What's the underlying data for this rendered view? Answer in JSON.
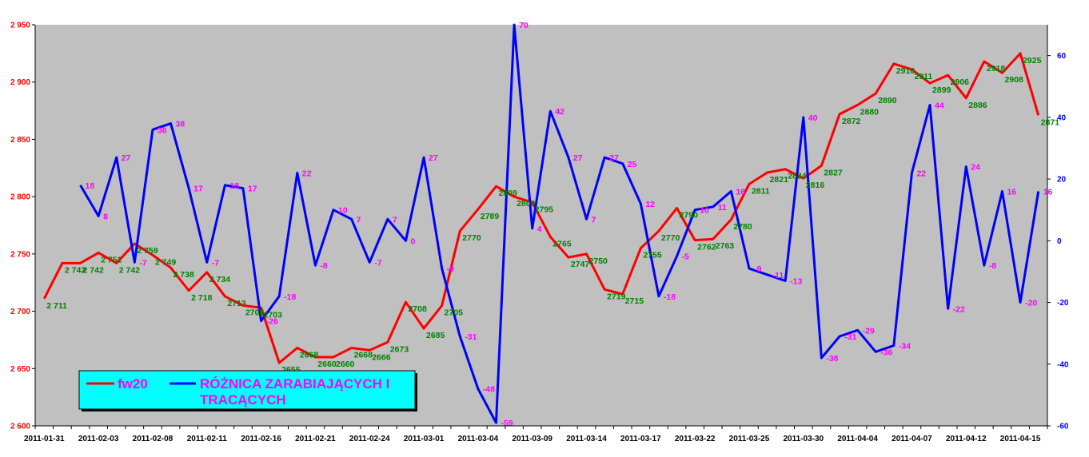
{
  "chart_data": {
    "type": "line",
    "title": "",
    "colors": {
      "plot_bg": "#c0c0c0",
      "legend_bg": "#00ffff",
      "fw20": "#ff0000",
      "diff": "#0000ff",
      "fw20_labels": "#008000",
      "diff_labels": "#ff00ff"
    },
    "x": [
      "2011-01-31",
      "2011-02-01",
      "2011-02-02",
      "2011-02-03",
      "2011-02-04",
      "2011-02-07",
      "2011-02-08",
      "2011-02-09",
      "2011-02-10",
      "2011-02-11",
      "2011-02-14",
      "2011-02-15",
      "2011-02-16",
      "2011-02-17",
      "2011-02-18",
      "2011-02-21",
      "2011-02-22",
      "2011-02-23",
      "2011-02-24",
      "2011-02-25",
      "2011-02-28",
      "2011-03-01",
      "2011-03-02",
      "2011-03-03",
      "2011-03-04",
      "2011-03-07",
      "2011-03-08",
      "2011-03-09",
      "2011-03-10",
      "2011-03-11",
      "2011-03-14",
      "2011-03-15",
      "2011-03-16",
      "2011-03-17",
      "2011-03-18",
      "2011-03-21",
      "2011-03-22",
      "2011-03-23",
      "2011-03-24",
      "2011-03-25",
      "2011-03-28",
      "2011-03-29",
      "2011-03-30",
      "2011-03-31",
      "2011-04-01",
      "2011-04-04",
      "2011-04-05",
      "2011-04-06",
      "2011-04-07",
      "2011-04-08",
      "2011-04-11",
      "2011-04-12",
      "2011-04-13",
      "2011-04-14",
      "2011-04-15",
      "2011-04-18"
    ],
    "x_tick_labels": [
      "2011-01-31",
      "2011-02-03",
      "2011-02-08",
      "2011-02-11",
      "2011-02-16",
      "2011-02-21",
      "2011-02-24",
      "2011-03-01",
      "2011-03-04",
      "2011-03-09",
      "2011-03-14",
      "2011-03-17",
      "2011-03-22",
      "2011-03-25",
      "2011-03-30",
      "2011-04-04",
      "2011-04-07",
      "2011-04-12",
      "2011-04-15"
    ],
    "y_left": {
      "ylim": [
        2600,
        2950
      ],
      "ticks": [
        "2 600",
        "2 650",
        "2 700",
        "2 750",
        "2 800",
        "2 850",
        "2 900",
        "2 950"
      ]
    },
    "y_right": {
      "ylim": [
        -60,
        70
      ],
      "ticks": [
        "-60",
        "-40",
        "-20",
        "0",
        "20",
        "40",
        "60"
      ]
    },
    "series": [
      {
        "name": "fw20",
        "axis": "left",
        "values": [
          2711,
          2742,
          2742,
          2751,
          2742,
          2759,
          2749,
          2738,
          2718,
          2734,
          2713,
          2705,
          2703,
          2655,
          2668,
          2660,
          2660,
          2668,
          2666,
          2673,
          2708,
          2685,
          2705,
          2770,
          2789,
          2809,
          2800,
          2795,
          2765,
          2747,
          2750,
          2719,
          2715,
          2755,
          2770,
          2790,
          2762,
          2763,
          2780,
          2811,
          2821,
          2824,
          2816,
          2827,
          2872,
          2880,
          2890,
          2916,
          2911,
          2899,
          2906,
          2886,
          2918,
          2908,
          2925,
          2871
        ],
        "labels": [
          "2 711",
          "2 742",
          "2 742",
          "2 751",
          "2 742",
          "2 759",
          "2 749",
          "2 738",
          "2 718",
          "2 734",
          "2713",
          "2705",
          "2703",
          "2655",
          "2668",
          "2660",
          "2660",
          "2668",
          "2666",
          "2673",
          "2708",
          "2685",
          "2705",
          "2770",
          "2789",
          "2809",
          "2800",
          "2795",
          "2765",
          "2747",
          "2750",
          "2719",
          "2715",
          "2755",
          "2770",
          "2790",
          "2762",
          "2763",
          "2780",
          "2811",
          "2821",
          "2824",
          "2816",
          "2827",
          "2872",
          "2880",
          "2890",
          "2916",
          "2911",
          "2899",
          "2906",
          "2886",
          "2918",
          "2908",
          "2925",
          "2871"
        ]
      },
      {
        "name": "RÓŻNICA ZARABIAJĄCYCH I TRACĄCYCH",
        "axis": "right",
        "values": [
          null,
          null,
          18,
          8,
          27,
          -7,
          36,
          38,
          17,
          -7,
          18,
          17,
          -26,
          -18,
          22,
          -8,
          10,
          7,
          -7,
          7,
          0,
          27,
          -9,
          -31,
          -48,
          -59,
          70,
          4,
          42,
          27,
          7,
          27,
          25,
          12,
          -18,
          -5,
          10,
          11,
          16,
          -9,
          -11,
          -13,
          40,
          -38,
          -31,
          -29,
          -36,
          -34,
          22,
          44,
          -22,
          24,
          -8,
          16,
          -20,
          16
        ],
        "labels": [
          "",
          "",
          "18",
          "8",
          "27",
          "-7",
          "36",
          "38",
          "17",
          "-7",
          "18",
          "17",
          "-26",
          "-18",
          "22",
          "-8",
          "10",
          "7",
          "-7",
          "7",
          "0",
          "27",
          "-9",
          "-31",
          "-48",
          "-59",
          "70",
          "4",
          "42",
          "27",
          "7",
          "27",
          "25",
          "12",
          "-18",
          "-5",
          "10",
          "11",
          "16",
          "-9",
          "-11",
          "-13",
          "40",
          "-38",
          "-31",
          "-29",
          "-36",
          "-34",
          "22",
          "44",
          "-22",
          "24",
          "-8",
          "16",
          "-20",
          "16"
        ]
      }
    ],
    "legend": {
      "placement": "bottom-left",
      "items": [
        "fw20",
        "RÓŻNICA ZARABIAJĄCYCH I",
        "TRACĄCYCH"
      ]
    },
    "grid": false
  }
}
